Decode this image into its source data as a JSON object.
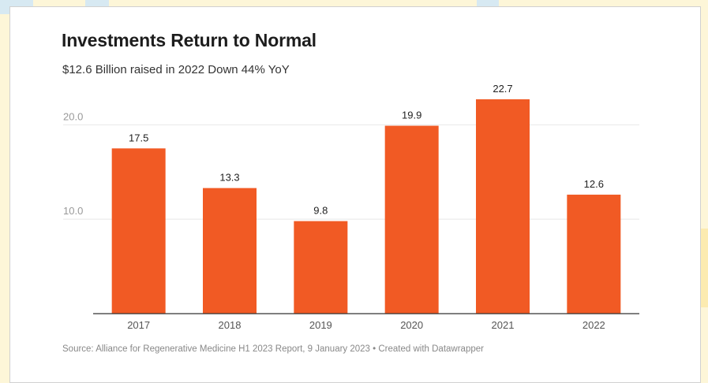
{
  "title": "Investments Return to Normal",
  "subtitle": "$12.6 Billion raised in 2022 Down 44% YoY",
  "source": "Source: Alliance for Regenerative Medicine H1 2023 Report, 9 January 2023 • Created with Datawrapper",
  "colors": {
    "bar": "#f15a24",
    "grid": "#e8e8e8",
    "axis": "#333333",
    "tick_text": "#999999",
    "label_text": "#222222"
  },
  "chart_data": {
    "type": "bar",
    "title": "Investments Return to Normal",
    "subtitle": "$12.6 Billion raised in 2022 Down 44% YoY",
    "categories": [
      "2017",
      "2018",
      "2019",
      "2020",
      "2021",
      "2022"
    ],
    "values": [
      17.5,
      13.3,
      9.8,
      19.9,
      22.7,
      12.6
    ],
    "value_labels": [
      "17.5",
      "13.3",
      "9.8",
      "19.9",
      "22.7",
      "12.6"
    ],
    "y_ticks": [
      10.0,
      20.0
    ],
    "y_tick_labels": [
      "10.0",
      "20.0"
    ],
    "ylim": [
      0,
      22.7
    ],
    "xlabel": "",
    "ylabel": "",
    "grid": true,
    "legend": "none"
  }
}
